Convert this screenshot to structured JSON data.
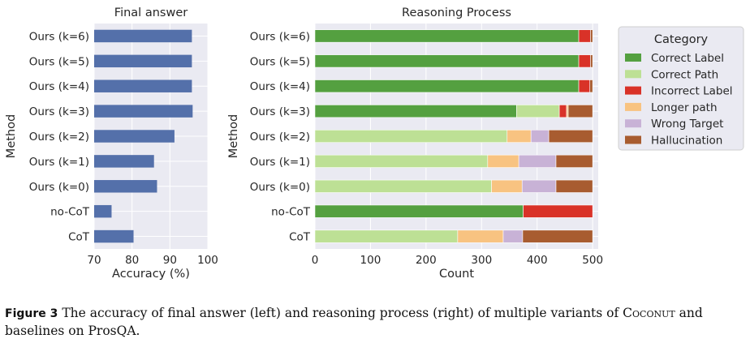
{
  "chart_data": [
    {
      "type": "bar",
      "orientation": "horizontal",
      "title": "Final answer",
      "xlabel": "Accuracy (%)",
      "ylabel": "Method",
      "xlim": [
        70,
        100
      ],
      "xticks": [
        "70",
        "80",
        "90",
        "100"
      ],
      "categories": [
        "Ours (k=6)",
        "Ours (k=5)",
        "Ours (k=4)",
        "Ours (k=3)",
        "Ours (k=2)",
        "Ours (k=1)",
        "Ours (k=0)",
        "no-CoT",
        "CoT"
      ],
      "values": [
        95.8,
        95.8,
        95.8,
        96.0,
        91.2,
        85.8,
        86.6,
        74.6,
        80.4
      ],
      "color": "#5470aa",
      "grid": true
    },
    {
      "type": "bar",
      "orientation": "horizontal",
      "stacked": true,
      "title": "Reasoning Process",
      "xlabel": "Count",
      "ylabel": "Method",
      "xlim": [
        0,
        510
      ],
      "xticks": [
        "0",
        "100",
        "200",
        "300",
        "400",
        "500"
      ],
      "categories": [
        "Ours (k=6)",
        "Ours (k=5)",
        "Ours (k=4)",
        "Ours (k=3)",
        "Ours (k=2)",
        "Ours (k=1)",
        "Ours (k=0)",
        "no-CoT",
        "CoT"
      ],
      "legend_title": "Category",
      "legend_position": "right",
      "grid": true,
      "series": [
        {
          "name": "Correct Label",
          "color": "#54a040",
          "values": [
            475,
            475,
            475,
            363,
            0,
            0,
            0,
            375,
            0
          ]
        },
        {
          "name": "Correct Path",
          "color": "#bde095",
          "values": [
            0,
            0,
            0,
            77,
            346,
            311,
            318,
            0,
            257
          ]
        },
        {
          "name": "Incorrect Label",
          "color": "#d93228",
          "values": [
            21,
            21,
            20,
            13,
            0,
            0,
            0,
            125,
            0
          ]
        },
        {
          "name": "Longer path",
          "color": "#f8c381",
          "values": [
            0,
            0,
            0,
            3,
            43,
            56,
            55,
            0,
            82
          ]
        },
        {
          "name": "Wrong Target",
          "color": "#c8b2d6",
          "values": [
            0,
            0,
            0,
            0,
            32,
            67,
            61,
            0,
            35
          ]
        },
        {
          "name": "Hallucination",
          "color": "#a85c30",
          "values": [
            4,
            4,
            5,
            44,
            79,
            66,
            66,
            0,
            126
          ]
        }
      ]
    }
  ],
  "caption": {
    "label": "Figure 3",
    "text_before": "The accuracy of final answer (left) and reasoning process (right) of multiple variants of ",
    "model_name": "Coconut",
    "text_after": " and baselines on ProsQA."
  }
}
